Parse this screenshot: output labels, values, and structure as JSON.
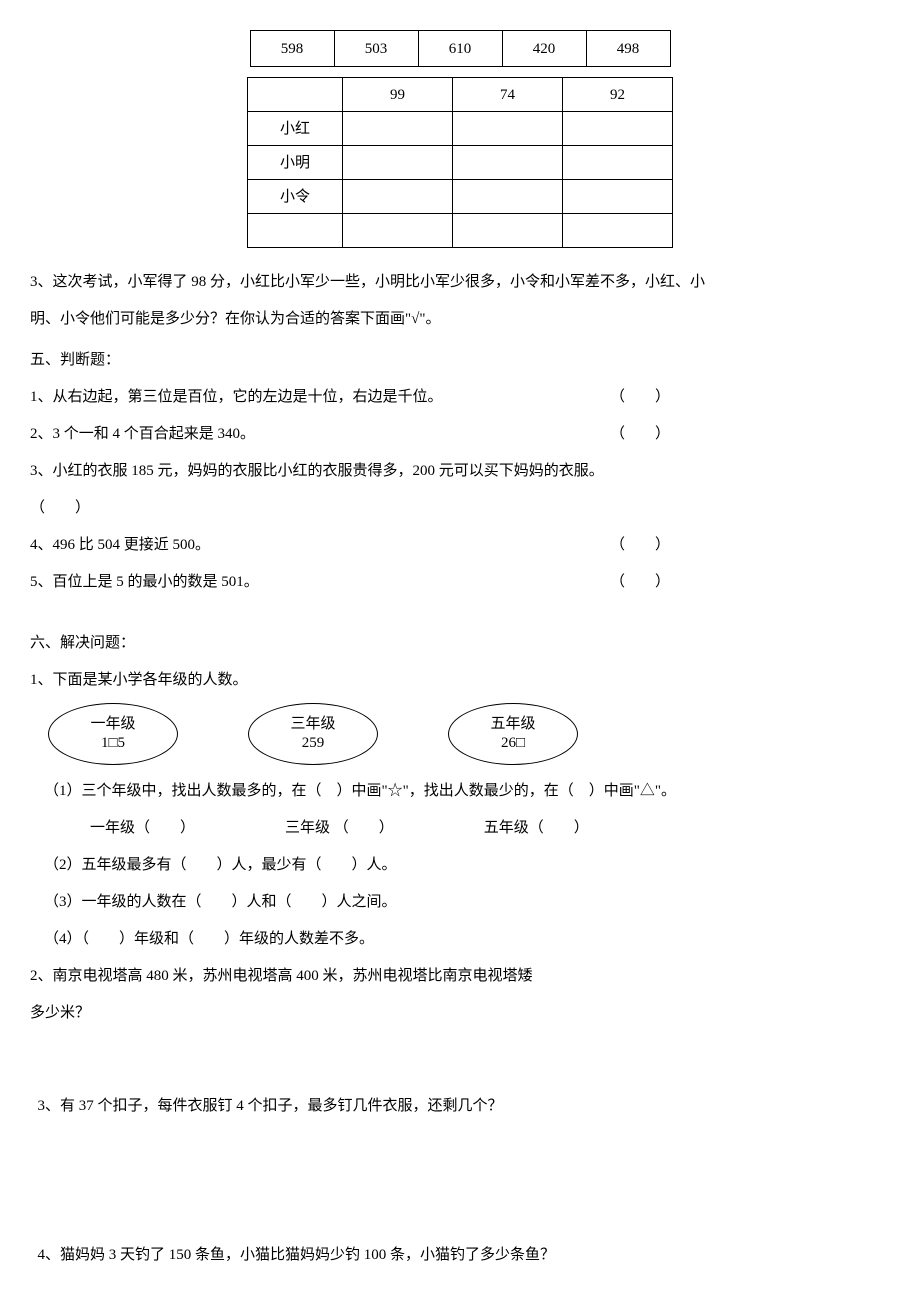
{
  "table1": {
    "cells": [
      "598",
      "503",
      "610",
      "420",
      "498"
    ]
  },
  "table2": {
    "header": [
      "",
      "99",
      "74",
      "92"
    ],
    "rows": [
      [
        "小红",
        "",
        "",
        ""
      ],
      [
        "小明",
        "",
        "",
        ""
      ],
      [
        "小令",
        "",
        "",
        ""
      ],
      [
        "",
        "",
        "",
        ""
      ]
    ]
  },
  "q3": {
    "line1": "3、这次考试，小军得了 98 分，小红比小军少一些，小明比小军少很多，小令和小军差不多，小红、小",
    "line2": "明、小令他们可能是多少分？在你认为合适的答案下面画\"√\"。"
  },
  "section5": {
    "title": "五、判断题：",
    "items": [
      {
        "text": "1、从右边起，第三位是百位，它的左边是十位，右边是千位。",
        "paren": "（　　）"
      },
      {
        "text": "2、3 个一和 4 个百合起来是 340。",
        "paren": "（　　）"
      },
      {
        "text": "3、小红的衣服 185 元，妈妈的衣服比小红的衣服贵得多，200 元可以买下妈妈的衣服。",
        "paren": ""
      }
    ],
    "item3paren": "（　　）",
    "items2": [
      {
        "text": "4、496 比 504 更接近 500。",
        "paren": "（　　）"
      },
      {
        "text": "5、百位上是 5 的最小的数是 501。",
        "paren": "（　　）"
      }
    ]
  },
  "section6": {
    "title": "六、解决问题：",
    "q1": {
      "intro": "1、下面是某小学各年级的人数。",
      "ellipses": [
        {
          "l1": "一年级",
          "l2": "1□5"
        },
        {
          "l1": "三年级",
          "l2": "259"
        },
        {
          "l1": "五年级",
          "l2": "26□"
        }
      ],
      "sub1": "（1）三个年级中，找出人数最多的，在（　）中画\"☆\"，找出人数最少的，在（　）中画\"△\"。",
      "grades": [
        "一年级（　　）",
        "三年级 （　　）",
        "五年级（　　）"
      ],
      "sub2": "（2）五年级最多有（　　）人，最少有（　　）人。",
      "sub3": "（3）一年级的人数在（　　）人和（　　）人之间。",
      "sub4": "（4）（　　）年级和（　　）年级的人数差不多。"
    },
    "q2": {
      "line1": "2、南京电视塔高 480 米，苏州电视塔高 400 米，苏州电视塔比南京电视塔矮",
      "line2": "多少米？"
    },
    "q3": "  3、有 37 个扣子，每件衣服钉 4 个扣子，最多钉几件衣服，还剩几个？",
    "q4": "  4、猫妈妈 3 天钓了 150 条鱼，小猫比猫妈妈少钓 100 条，小猫钓了多少条鱼？"
  }
}
